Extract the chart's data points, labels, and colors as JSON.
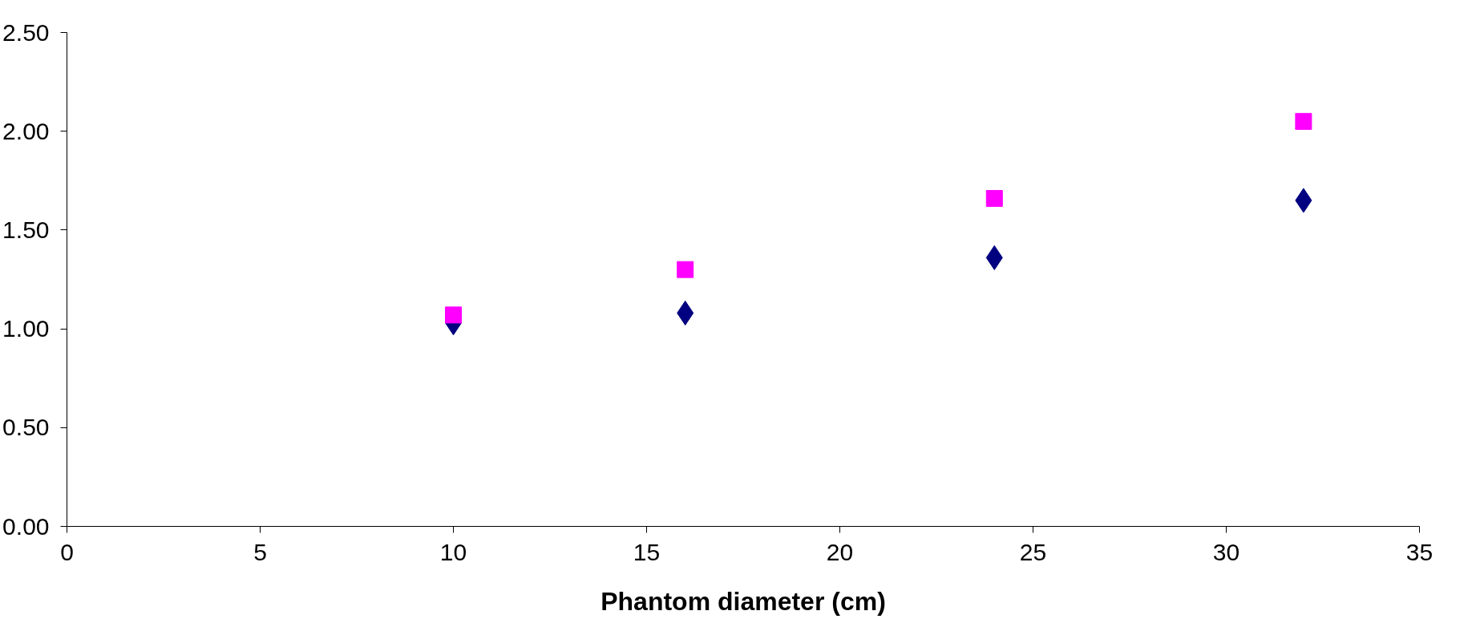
{
  "chart_data": {
    "type": "scatter",
    "xlabel": "Phantom diameter (cm)",
    "x": [
      10,
      16,
      24,
      32
    ],
    "series": [
      {
        "color": "#000080",
        "marker": "diamond",
        "values": [
          1.03,
          1.08,
          1.36,
          1.65
        ]
      },
      {
        "color": "#ff00ff",
        "marker": "square",
        "values": [
          1.07,
          1.3,
          1.66,
          2.05
        ]
      }
    ],
    "xlim": [
      0,
      35
    ],
    "xticks": [
      0,
      5,
      10,
      15,
      20,
      25,
      30,
      35
    ],
    "ylim": [
      0,
      2.5
    ],
    "yticks": [
      {
        "value": 0,
        "label": "0.00"
      },
      {
        "value": 0.5,
        "label": "0.50"
      },
      {
        "value": 1,
        "label": "1.00"
      },
      {
        "value": 1.5,
        "label": "1.50"
      },
      {
        "value": 2,
        "label": "2.00"
      },
      {
        "value": 2.5,
        "label": "2.50"
      }
    ],
    "grid": false
  }
}
